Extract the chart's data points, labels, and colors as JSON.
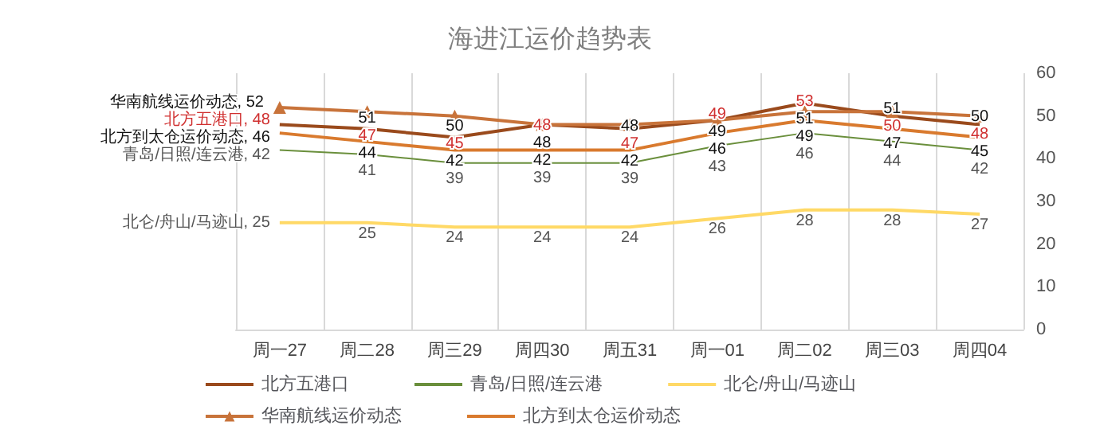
{
  "chart_data": {
    "type": "line",
    "title": "海进江运价趋势表",
    "categories": [
      "周一27",
      "周二28",
      "周三29",
      "周四30",
      "周五31",
      "周一01",
      "周二02",
      "周三03",
      "周四04"
    ],
    "series": [
      {
        "name": "北方五港口",
        "color": "#9a4a1c",
        "values": [
          48,
          47,
          45,
          48,
          47,
          49,
          53,
          50,
          48
        ],
        "value_labels": [
          "北方五港口, 48",
          "47",
          "45",
          "48",
          "47",
          "49",
          "53",
          "50",
          "48"
        ]
      },
      {
        "name": "青岛/日照/连云港",
        "color": "#6a8f3c",
        "values": [
          42,
          41,
          39,
          39,
          39,
          43,
          46,
          44,
          42
        ],
        "value_labels": [
          "青岛/日照/连云港, 42",
          "41",
          "39",
          "39",
          "39",
          "43",
          "46",
          "44",
          "42"
        ]
      },
      {
        "name": "北仑/舟山/马迹山",
        "color": "#ffd966",
        "values": [
          25,
          25,
          24,
          24,
          24,
          26,
          28,
          28,
          27
        ],
        "value_labels": [
          "北仑/舟山/马迹山, 25",
          "25",
          "24",
          "24",
          "24",
          "26",
          "28",
          "28",
          "27"
        ]
      },
      {
        "name": "华南航线运价动态",
        "color": "#c8733a",
        "marker": "triangle",
        "values": [
          52,
          51,
          50,
          48,
          48,
          49,
          51,
          51,
          50
        ],
        "value_labels": [
          "华南航线运价动态, 52",
          "51",
          "50",
          "48",
          "48",
          "49",
          "51",
          "51",
          "50"
        ]
      },
      {
        "name": "北方到太仓运价动态",
        "color": "#d97a2e",
        "values": [
          46,
          44,
          42,
          42,
          42,
          46,
          49,
          47,
          45
        ],
        "value_labels": [
          "北方到太仓运价动态, 46",
          "44",
          "42",
          "42",
          "42",
          "46",
          "49",
          "47",
          "45"
        ]
      }
    ],
    "ylim": [
      0,
      60
    ],
    "yticks": [
      0,
      10,
      20,
      30,
      40,
      50,
      60
    ],
    "grid": "x",
    "legend": "bottom"
  }
}
